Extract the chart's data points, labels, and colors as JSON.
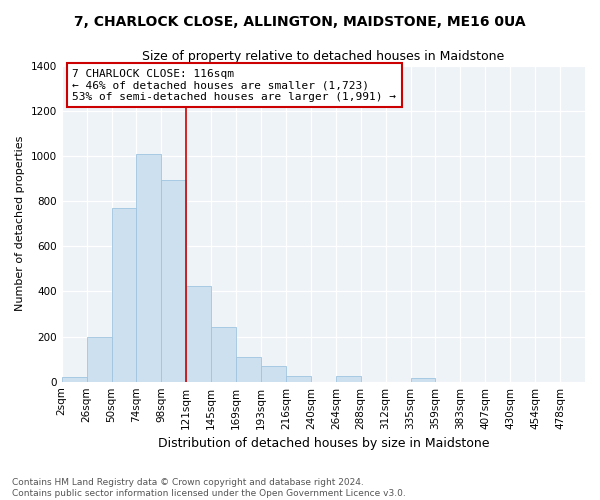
{
  "title": "7, CHARLOCK CLOSE, ALLINGTON, MAIDSTONE, ME16 0UA",
  "subtitle": "Size of property relative to detached houses in Maidstone",
  "xlabel": "Distribution of detached houses by size in Maidstone",
  "ylabel": "Number of detached properties",
  "footer_line1": "Contains HM Land Registry data © Crown copyright and database right 2024.",
  "footer_line2": "Contains public sector information licensed under the Open Government Licence v3.0.",
  "bin_labels": [
    "2sqm",
    "26sqm",
    "50sqm",
    "74sqm",
    "98sqm",
    "121sqm",
    "145sqm",
    "169sqm",
    "193sqm",
    "216sqm",
    "240sqm",
    "264sqm",
    "288sqm",
    "312sqm",
    "335sqm",
    "359sqm",
    "383sqm",
    "407sqm",
    "430sqm",
    "454sqm",
    "478sqm"
  ],
  "bar_heights": [
    20,
    200,
    770,
    1010,
    895,
    425,
    240,
    110,
    68,
    25,
    0,
    25,
    0,
    0,
    18,
    0,
    0,
    0,
    0,
    0,
    0
  ],
  "bar_color": "#cce0f0",
  "bar_edge_color": "#a0c4e0",
  "highlight_color": "#cc0000",
  "ylim": [
    0,
    1400
  ],
  "yticks": [
    0,
    200,
    400,
    600,
    800,
    1000,
    1200,
    1400
  ],
  "annotation_title": "7 CHARLOCK CLOSE: 116sqm",
  "annotation_line1": "← 46% of detached houses are smaller (1,723)",
  "annotation_line2": "53% of semi-detached houses are larger (1,991) →",
  "annotation_box_color": "#ffffff",
  "annotation_box_edge": "#cc0000",
  "background_color": "#eef3f8",
  "red_line_x": 5,
  "title_fontsize": 10,
  "subtitle_fontsize": 9,
  "ylabel_fontsize": 8,
  "xlabel_fontsize": 9,
  "tick_fontsize": 7.5,
  "annot_fontsize": 8,
  "footer_fontsize": 6.5
}
